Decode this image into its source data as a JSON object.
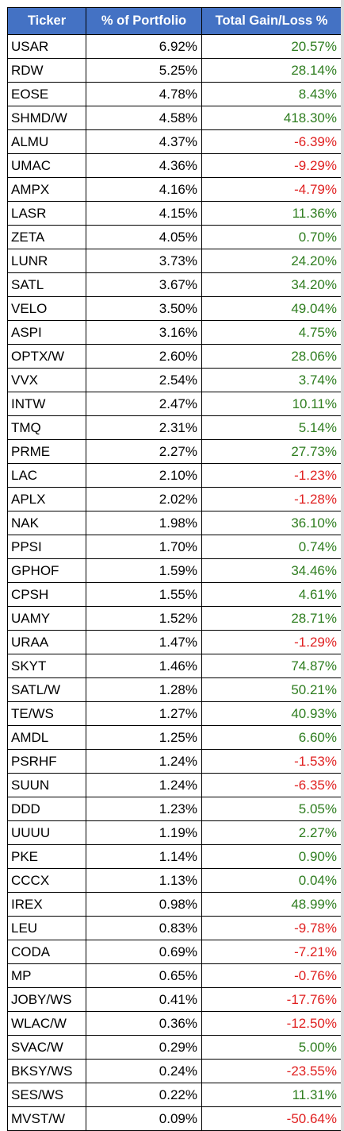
{
  "colors": {
    "header_bg": "#4472c4",
    "header_text": "#ffffff",
    "gain_positive": "#2e7d1f",
    "gain_negative": "#e02020"
  },
  "headers": {
    "ticker": "Ticker",
    "portfolio": "% of Portfolio",
    "gain": "Total Gain/Loss %"
  },
  "rows": [
    {
      "ticker": "USAR",
      "portfolio": "6.92%",
      "gain": "20.57%",
      "positive": true
    },
    {
      "ticker": "RDW",
      "portfolio": "5.25%",
      "gain": "28.14%",
      "positive": true
    },
    {
      "ticker": "EOSE",
      "portfolio": "4.78%",
      "gain": "8.43%",
      "positive": true
    },
    {
      "ticker": "SHMD/W",
      "portfolio": "4.58%",
      "gain": "418.30%",
      "positive": true
    },
    {
      "ticker": "ALMU",
      "portfolio": "4.37%",
      "gain": "-6.39%",
      "positive": false
    },
    {
      "ticker": "UMAC",
      "portfolio": "4.36%",
      "gain": "-9.29%",
      "positive": false
    },
    {
      "ticker": "AMPX",
      "portfolio": "4.16%",
      "gain": "-4.79%",
      "positive": false
    },
    {
      "ticker": "LASR",
      "portfolio": "4.15%",
      "gain": "11.36%",
      "positive": true
    },
    {
      "ticker": "ZETA",
      "portfolio": "4.05%",
      "gain": "0.70%",
      "positive": true
    },
    {
      "ticker": "LUNR",
      "portfolio": "3.73%",
      "gain": "24.20%",
      "positive": true
    },
    {
      "ticker": "SATL",
      "portfolio": "3.67%",
      "gain": "34.20%",
      "positive": true
    },
    {
      "ticker": "VELO",
      "portfolio": "3.50%",
      "gain": "49.04%",
      "positive": true
    },
    {
      "ticker": "ASPI",
      "portfolio": "3.16%",
      "gain": "4.75%",
      "positive": true
    },
    {
      "ticker": "OPTX/W",
      "portfolio": "2.60%",
      "gain": "28.06%",
      "positive": true
    },
    {
      "ticker": "VVX",
      "portfolio": "2.54%",
      "gain": "3.74%",
      "positive": true
    },
    {
      "ticker": "INTW",
      "portfolio": "2.47%",
      "gain": "10.11%",
      "positive": true
    },
    {
      "ticker": "TMQ",
      "portfolio": "2.31%",
      "gain": "5.14%",
      "positive": true
    },
    {
      "ticker": "PRME",
      "portfolio": "2.27%",
      "gain": "27.73%",
      "positive": true
    },
    {
      "ticker": "LAC",
      "portfolio": "2.10%",
      "gain": "-1.23%",
      "positive": false
    },
    {
      "ticker": "APLX",
      "portfolio": "2.02%",
      "gain": "-1.28%",
      "positive": false
    },
    {
      "ticker": "NAK",
      "portfolio": "1.98%",
      "gain": "36.10%",
      "positive": true
    },
    {
      "ticker": "PPSI",
      "portfolio": "1.70%",
      "gain": "0.74%",
      "positive": true
    },
    {
      "ticker": "GPHOF",
      "portfolio": "1.59%",
      "gain": "34.46%",
      "positive": true
    },
    {
      "ticker": "CPSH",
      "portfolio": "1.55%",
      "gain": "4.61%",
      "positive": true
    },
    {
      "ticker": "UAMY",
      "portfolio": "1.52%",
      "gain": "28.71%",
      "positive": true
    },
    {
      "ticker": "URAA",
      "portfolio": "1.47%",
      "gain": "-1.29%",
      "positive": false
    },
    {
      "ticker": "SKYT",
      "portfolio": "1.46%",
      "gain": "74.87%",
      "positive": true
    },
    {
      "ticker": "SATL/W",
      "portfolio": "1.28%",
      "gain": "50.21%",
      "positive": true
    },
    {
      "ticker": "TE/WS",
      "portfolio": "1.27%",
      "gain": "40.93%",
      "positive": true
    },
    {
      "ticker": "AMDL",
      "portfolio": "1.25%",
      "gain": "6.60%",
      "positive": true
    },
    {
      "ticker": "PSRHF",
      "portfolio": "1.24%",
      "gain": "-1.53%",
      "positive": false
    },
    {
      "ticker": "SUUN",
      "portfolio": "1.24%",
      "gain": "-6.35%",
      "positive": false
    },
    {
      "ticker": "DDD",
      "portfolio": "1.23%",
      "gain": "5.05%",
      "positive": true
    },
    {
      "ticker": "UUUU",
      "portfolio": "1.19%",
      "gain": "2.27%",
      "positive": true
    },
    {
      "ticker": "PKE",
      "portfolio": "1.14%",
      "gain": "0.90%",
      "positive": true
    },
    {
      "ticker": "CCCX",
      "portfolio": "1.13%",
      "gain": "0.04%",
      "positive": true
    },
    {
      "ticker": "IREX",
      "portfolio": "0.98%",
      "gain": "48.99%",
      "positive": true
    },
    {
      "ticker": "LEU",
      "portfolio": "0.83%",
      "gain": "-9.78%",
      "positive": false
    },
    {
      "ticker": "CODA",
      "portfolio": "0.69%",
      "gain": "-7.21%",
      "positive": false
    },
    {
      "ticker": "MP",
      "portfolio": "0.65%",
      "gain": "-0.76%",
      "positive": false
    },
    {
      "ticker": "JOBY/WS",
      "portfolio": "0.41%",
      "gain": "-17.76%",
      "positive": false
    },
    {
      "ticker": "WLAC/W",
      "portfolio": "0.36%",
      "gain": "-12.50%",
      "positive": false
    },
    {
      "ticker": "SVAC/W",
      "portfolio": "0.29%",
      "gain": "5.00%",
      "positive": true
    },
    {
      "ticker": "BKSY/WS",
      "portfolio": "0.24%",
      "gain": "-23.55%",
      "positive": false
    },
    {
      "ticker": "SES/WS",
      "portfolio": "0.22%",
      "gain": "11.31%",
      "positive": true
    },
    {
      "ticker": "MVST/W",
      "portfolio": "0.09%",
      "gain": "-50.64%",
      "positive": false
    }
  ]
}
